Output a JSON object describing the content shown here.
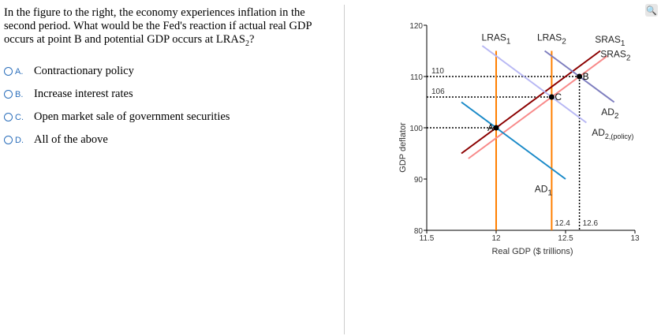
{
  "question": {
    "text": "In the figure to the right, the economy experiences inflation in the second period. What would be the Fed's reaction if actual real GDP occurs at point B and potential GDP occurs at LRAS",
    "sub": "2",
    "end": "?"
  },
  "options": [
    {
      "letter": "A.",
      "label": "Contractionary policy"
    },
    {
      "letter": "B.",
      "label": "Increase interest rates"
    },
    {
      "letter": "C.",
      "label": "Open market sale of government securities"
    },
    {
      "letter": "D.",
      "label": "All of the above"
    }
  ],
  "zoom_icon": "magnifier-plus-icon",
  "chart_data": {
    "type": "line",
    "xlabel": "Real GDP ($ trillions)",
    "ylabel": "GDP deflator",
    "xlim": [
      11.5,
      13
    ],
    "ylim": [
      80,
      120
    ],
    "xticks": [
      "11.5",
      "12",
      "12.5",
      "13"
    ],
    "yticks": [
      "80",
      "90",
      "100",
      "110",
      "120"
    ],
    "series": [
      {
        "name": "LRAS",
        "sub": "1",
        "color": "#ff7f00",
        "points": [
          [
            12,
            80
          ],
          [
            12,
            115
          ]
        ]
      },
      {
        "name": "LRAS",
        "sub": "2",
        "color": "#ff7f00",
        "points": [
          [
            12.4,
            80
          ],
          [
            12.4,
            115
          ]
        ]
      },
      {
        "name": "SRAS",
        "sub": "1",
        "color": "#8b0000",
        "points": [
          [
            11.75,
            95
          ],
          [
            12.75,
            115
          ]
        ]
      },
      {
        "name": "SRAS",
        "sub": "2",
        "color": "#f88a8a",
        "points": [
          [
            11.8,
            94
          ],
          [
            12.8,
            114
          ]
        ]
      },
      {
        "name": "AD",
        "sub": "1",
        "color": "#1a8ac8",
        "points": [
          [
            11.75,
            105
          ],
          [
            12.5,
            90
          ]
        ]
      },
      {
        "name": "AD",
        "sub": "2",
        "color": "#7f7fbf",
        "points": [
          [
            12.35,
            115
          ],
          [
            12.85,
            105
          ]
        ]
      },
      {
        "name": "AD",
        "sub": "2,(policy)",
        "color": "#b8b8f4",
        "points": [
          [
            11.9,
            116
          ],
          [
            12.65,
            101
          ]
        ]
      }
    ],
    "points": [
      {
        "label": "A",
        "x": 12,
        "y": 100
      },
      {
        "label": "B",
        "x": 12.6,
        "y": 110
      },
      {
        "label": "C",
        "x": 12.4,
        "y": 106
      }
    ],
    "annotations": {
      "y110": "110",
      "y106": "106",
      "x124": "12.4",
      "x126": "12.6"
    }
  }
}
